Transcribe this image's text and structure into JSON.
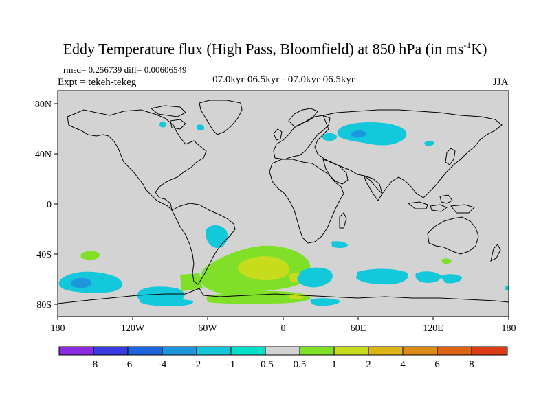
{
  "title": {
    "main": "Eddy Temperature flux (High Pass, Bloomfield) at 850 hPa (in ms",
    "sup": "-1",
    "end": "K)"
  },
  "stats": "rmsd= 0.256739 diff= 0.00606549",
  "expt": "Expt = tekeh-tekeg",
  "center_label": "07.0kyr-06.5kyr - 07.0kyr-06.5kyr",
  "season": "JJA",
  "colors": {
    "background": "#d3d3d3",
    "neg8": "#8a2be2",
    "neg6": "#3a3ae0",
    "neg4": "#1e64dc",
    "neg2": "#1e96dc",
    "neg1": "#14c8dc",
    "neg05": "#00e0c8",
    "zero": "#d3d3d3",
    "pos05": "#80e028",
    "pos1": "#c8dc1e",
    "pos2": "#dcb414",
    "pos4": "#dc8c14",
    "pos6": "#dc6414",
    "pos8": "#dc3c14"
  },
  "map": {
    "lon_range": [
      -180,
      180
    ],
    "lat_range": [
      -90,
      90
    ],
    "x_ticks": [
      "180",
      "120W",
      "60W",
      "0",
      "60E",
      "120E",
      "180"
    ],
    "y_ticks": [
      "80N",
      "40N",
      "0",
      "40S",
      "80S"
    ]
  },
  "colorbar": {
    "labels": [
      "-8",
      "-6",
      "-4",
      "-2",
      "-1",
      "-0.5",
      "0.5",
      "1",
      "2",
      "4",
      "6",
      "8"
    ]
  }
}
